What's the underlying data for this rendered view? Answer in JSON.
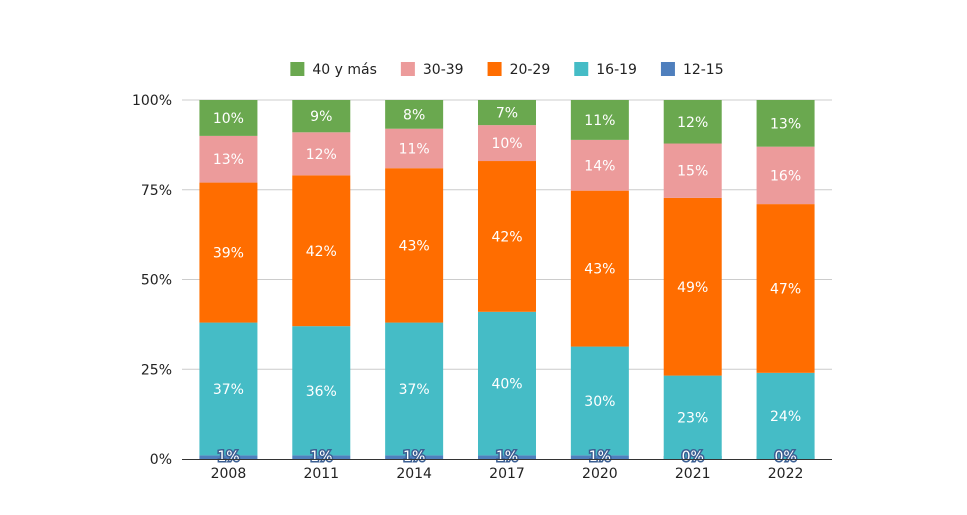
{
  "chart_data": {
    "type": "bar",
    "stacked": true,
    "normalized": true,
    "categories": [
      "2008",
      "2011",
      "2014",
      "2017",
      "2020",
      "2021",
      "2022"
    ],
    "series": [
      {
        "name": "12-15",
        "color": "#4f7fbd",
        "values": [
          1,
          1,
          1,
          1,
          1,
          0,
          0
        ],
        "labels": [
          "1%",
          "1%",
          "1%",
          "1%",
          "1%",
          "0%",
          "0%"
        ]
      },
      {
        "name": "16-19",
        "color": "#45bcc6",
        "values": [
          37,
          36,
          37,
          40,
          30,
          23,
          24
        ],
        "labels": [
          "37%",
          "36%",
          "37%",
          "40%",
          "30%",
          "23%",
          "24%"
        ]
      },
      {
        "name": "20-29",
        "color": "#ff6d00",
        "values": [
          39,
          42,
          43,
          42,
          43,
          49,
          47
        ],
        "labels": [
          "39%",
          "42%",
          "43%",
          "42%",
          "43%",
          "49%",
          "47%"
        ]
      },
      {
        "name": "30-39",
        "color": "#ec9b9b",
        "values": [
          13,
          12,
          11,
          10,
          14,
          15,
          16
        ],
        "labels": [
          "13%",
          "12%",
          "11%",
          "10%",
          "14%",
          "15%",
          "16%"
        ]
      },
      {
        "name": "40 y más",
        "color": "#6aa84f",
        "values": [
          10,
          9,
          8,
          7,
          11,
          12,
          13
        ],
        "labels": [
          "10%",
          "9%",
          "8%",
          "7%",
          "11%",
          "12%",
          "13%"
        ]
      }
    ],
    "legend_order": [
      "40 y más",
      "30-39",
      "20-29",
      "16-19",
      "12-15"
    ],
    "y_ticks": [
      "0%",
      "25%",
      "50%",
      "75%",
      "100%"
    ],
    "ylim": [
      0,
      100
    ],
    "grid": true,
    "legend_position": "top"
  }
}
